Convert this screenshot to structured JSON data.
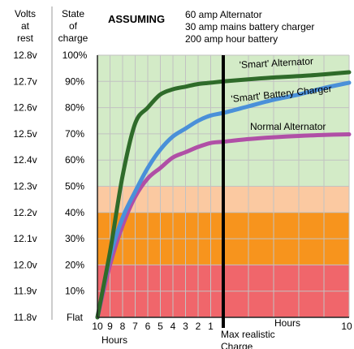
{
  "chart_data": {
    "type": "line",
    "header": {
      "volts_at_rest": [
        "Volts",
        "at",
        "rest"
      ],
      "state_of_charge": [
        "State",
        "of",
        "charge"
      ],
      "assuming_label": "ASSUMING",
      "assumptions": [
        "60 amp Alternator",
        "30 amp mains battery charger",
        "200 amp hour battery"
      ]
    },
    "y_axis": {
      "ylim": [
        0,
        100
      ],
      "volts_ticks": [
        "12.8v",
        "12.7v",
        "12.6v",
        "12.5v",
        "12.4v",
        "12.3v",
        "12.2v",
        "12.1v",
        "12.0v",
        "11.9v",
        "11.8v"
      ],
      "charge_ticks": [
        "100%",
        "90%",
        "80%",
        "70%",
        "60%",
        "50%",
        "40%",
        "30%",
        "20%",
        "10%",
        "Flat"
      ],
      "tick_values": [
        100,
        90,
        80,
        70,
        60,
        50,
        40,
        30,
        20,
        10,
        0
      ]
    },
    "x_axis": {
      "xlim": [
        -10,
        10
      ],
      "left_tick_labels": [
        "10",
        "9",
        "8",
        "7",
        "6",
        "5",
        "4",
        "3",
        "2",
        "1"
      ],
      "left_tick_values": [
        -10,
        -9,
        -8,
        -7,
        -6,
        -5,
        -4,
        -3,
        -2,
        -1
      ],
      "right_end_label": "10",
      "right_end_value": 10,
      "left_label": "Hours",
      "right_label": "Hours",
      "marker_label": [
        "Max realistic",
        "Charge"
      ],
      "marker_value": 0
    },
    "bands": [
      {
        "from": 0,
        "to": 20,
        "color": "#f0666b"
      },
      {
        "from": 20,
        "to": 40,
        "color": "#f7941d"
      },
      {
        "from": 40,
        "to": 50,
        "color": "#fbc9a1"
      },
      {
        "from": 50,
        "to": 100,
        "color": "#d3ebc7"
      }
    ],
    "grid": true,
    "grid_color": "#c2c2c2",
    "series": [
      {
        "name": "'Smart' Alternator",
        "color": "#2f6b2a",
        "x": [
          -10,
          -9,
          -8,
          -7,
          -6,
          -5,
          -4,
          -3,
          -2,
          -1,
          0,
          2,
          4,
          6,
          8,
          10
        ],
        "y": [
          0,
          25,
          54,
          74,
          80,
          85,
          87,
          88,
          89,
          89.5,
          90,
          90.8,
          91.5,
          92,
          92.7,
          93.5
        ]
      },
      {
        "name": "'Smart' Battery Charger",
        "color": "#4a90d9",
        "x": [
          -10,
          -9,
          -8,
          -7,
          -6,
          -5,
          -4,
          -3,
          -2,
          -1,
          0,
          2,
          4,
          6,
          8,
          10
        ],
        "y": [
          0,
          23,
          38,
          48,
          57,
          64,
          69,
          72,
          75,
          77,
          78,
          80.5,
          83,
          85,
          87.5,
          89.5
        ]
      },
      {
        "name": "Normal Alternator",
        "color": "#b04fa6",
        "x": [
          -10,
          -9,
          -8,
          -7,
          -6,
          -5,
          -4,
          -3,
          -2,
          -1,
          0,
          2,
          4,
          6,
          8,
          10
        ],
        "y": [
          0,
          20,
          35,
          46,
          53,
          57,
          61,
          63,
          65,
          66.5,
          67,
          68,
          68.7,
          69.2,
          69.6,
          69.8
        ]
      }
    ]
  }
}
